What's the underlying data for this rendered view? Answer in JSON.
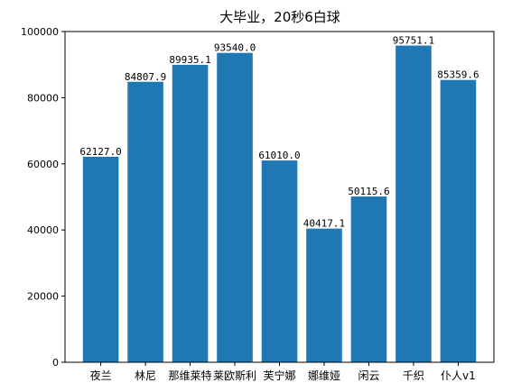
{
  "chart_data": {
    "type": "bar",
    "title": "大毕业，20秒6白球",
    "xlabel": "",
    "ylabel": "",
    "categories": [
      "夜兰",
      "林尼",
      "那维莱特",
      "莱欧斯利",
      "芙宁娜",
      "娜维娅",
      "闲云",
      "千织",
      "仆人v1"
    ],
    "values": [
      62127.0,
      84807.9,
      89935.1,
      93540.0,
      61010.0,
      40417.1,
      50115.6,
      95751.1,
      85359.6
    ],
    "data_labels": [
      "62127.0",
      "84807.9",
      "89935.1",
      "93540.0",
      "61010.0",
      "40417.1",
      "50115.6",
      "95751.1",
      "85359.6"
    ],
    "ylim": [
      0,
      100000
    ],
    "yticks": [
      0,
      20000,
      40000,
      60000,
      80000,
      100000
    ],
    "grid": false,
    "legend": "none",
    "colors": {
      "bar": "#1f77b4",
      "axis": "#000000",
      "background": "#ffffff"
    }
  }
}
